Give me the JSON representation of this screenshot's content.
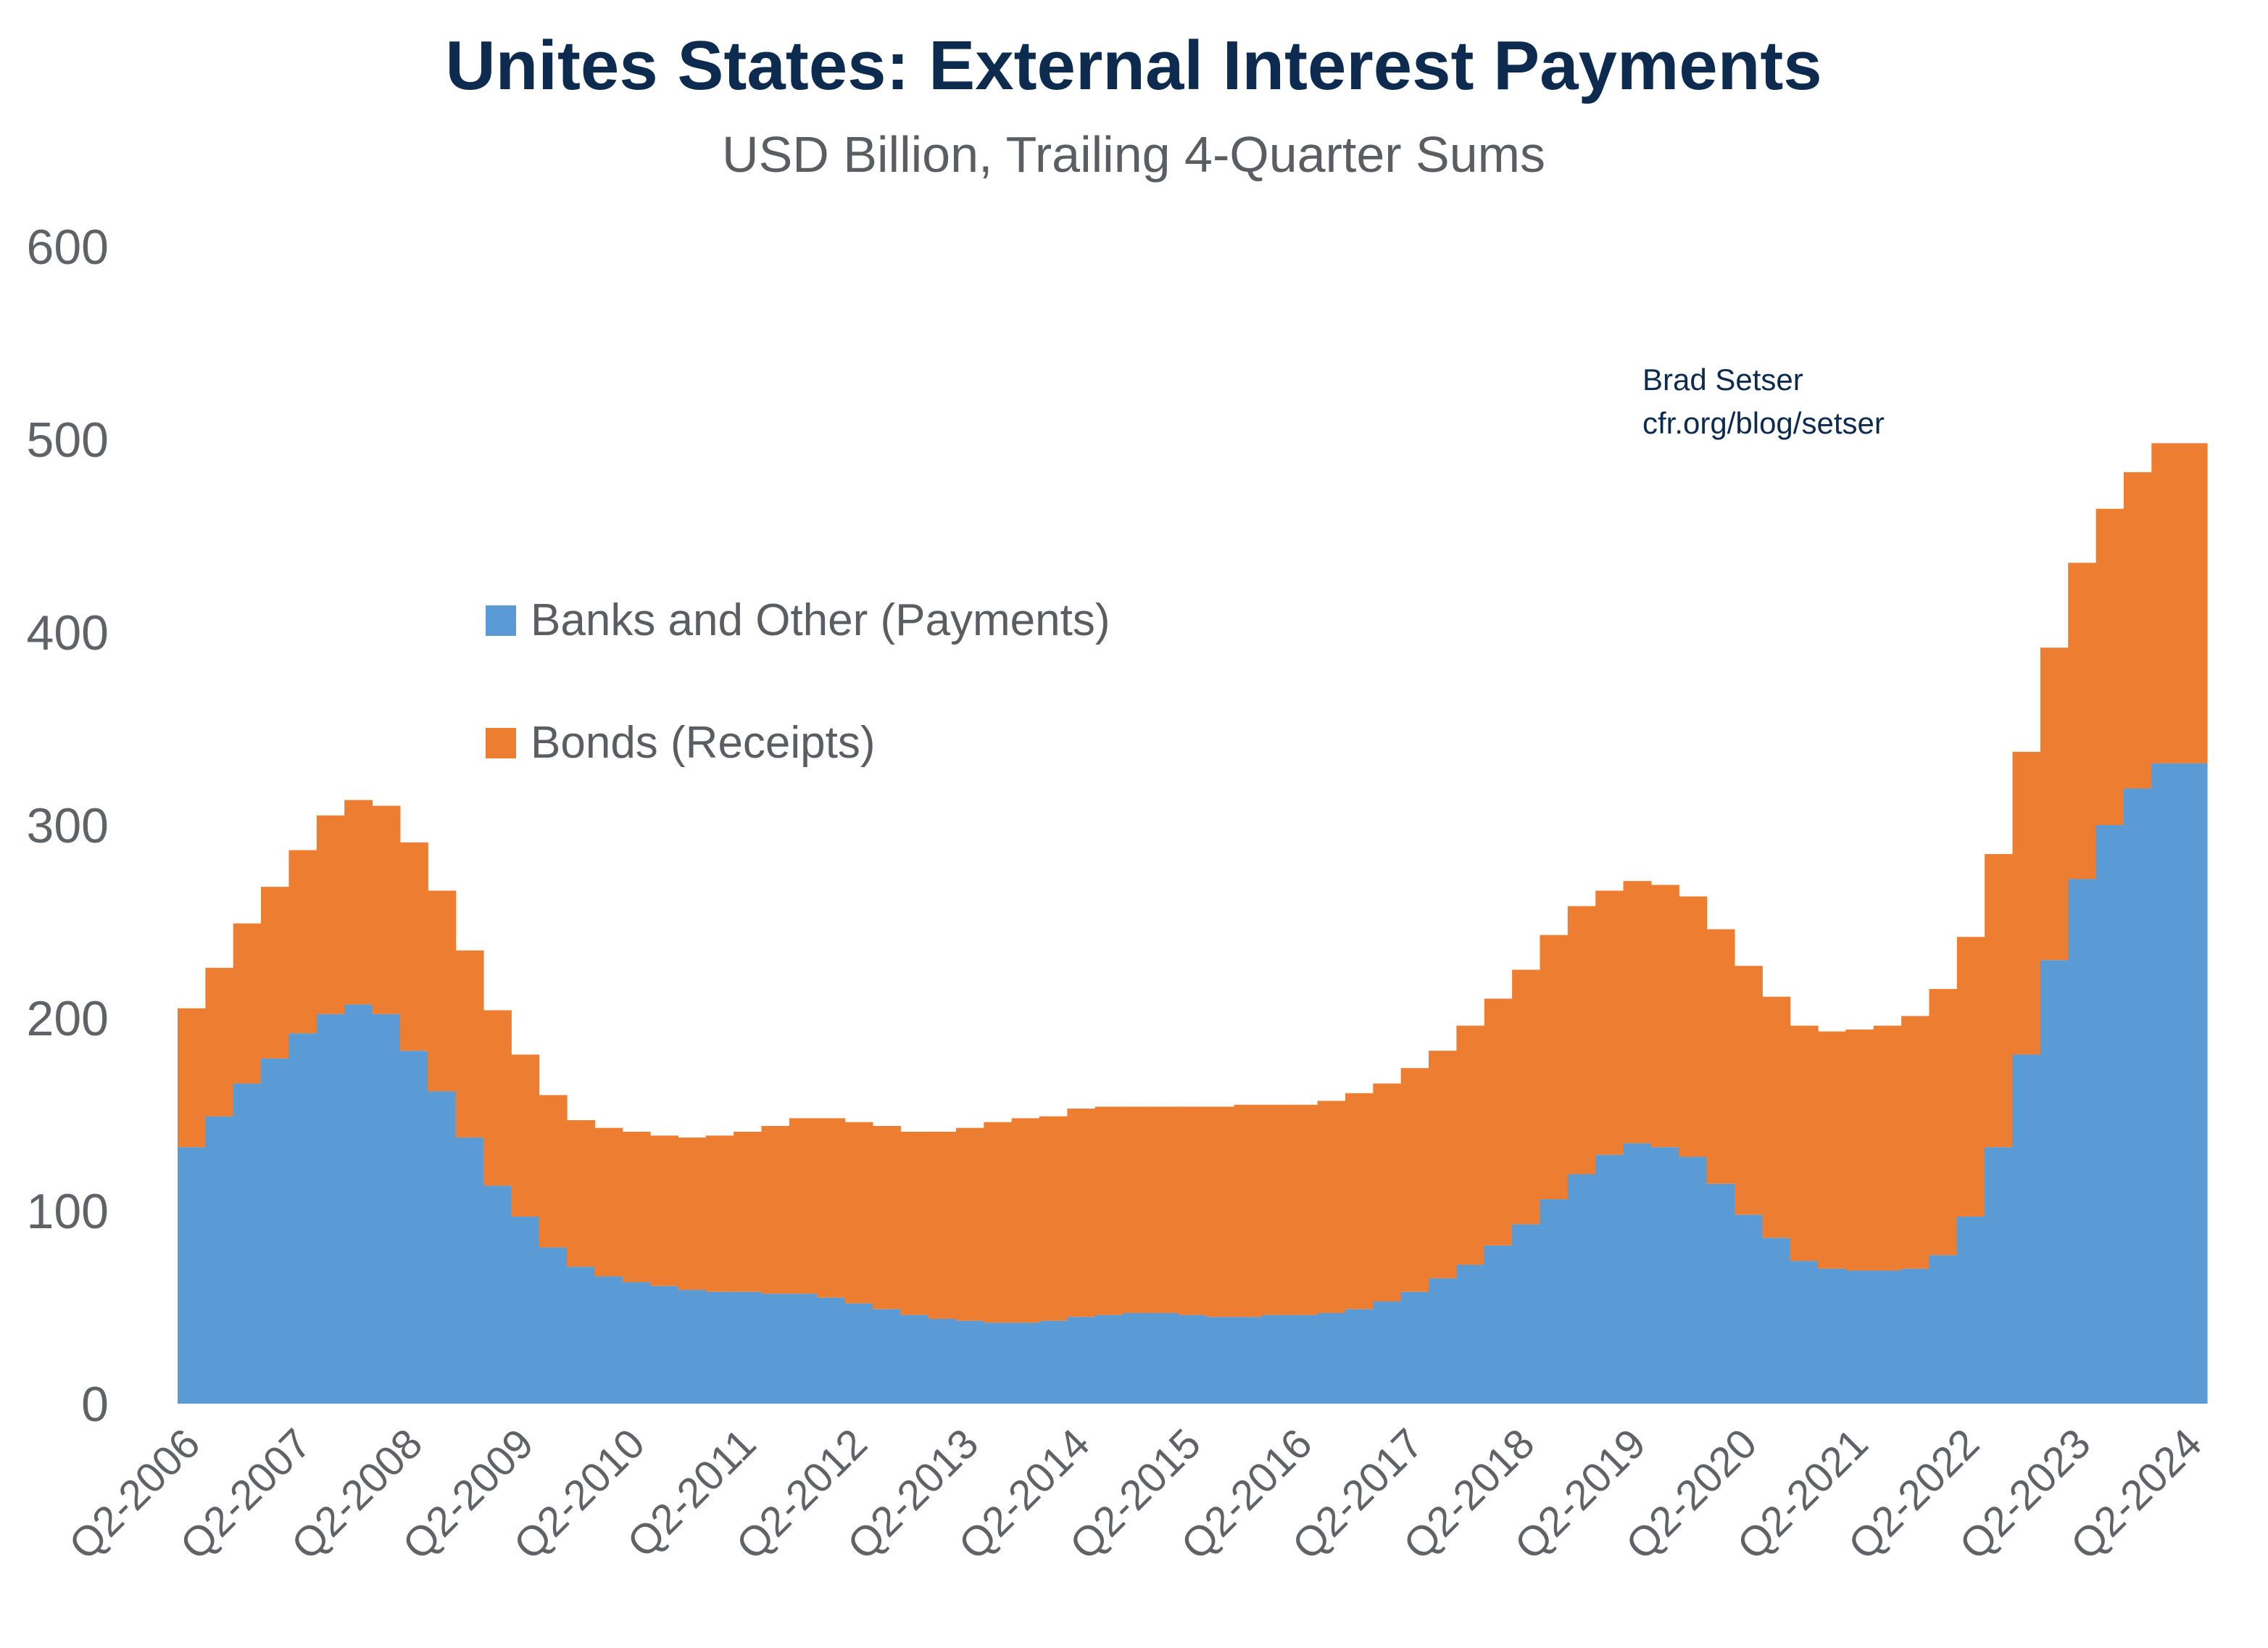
{
  "chart_data": {
    "type": "bar",
    "stacked": true,
    "title": "Unites States: External Interest Payments",
    "subtitle": "USD Billion, Trailing 4-Quarter Sums",
    "credit_line1": "Brad Setser",
    "credit_line2": "cfr.org/blog/setser",
    "ylim": [
      0,
      600
    ],
    "yticks": [
      0,
      100,
      200,
      300,
      400,
      500,
      600
    ],
    "grid": false,
    "legend_position": "center-left",
    "categories": [
      "Q2-2006",
      "Q3-2006",
      "Q4-2006",
      "Q1-2007",
      "Q2-2007",
      "Q3-2007",
      "Q4-2007",
      "Q1-2008",
      "Q2-2008",
      "Q3-2008",
      "Q4-2008",
      "Q1-2009",
      "Q2-2009",
      "Q3-2009",
      "Q4-2009",
      "Q1-2010",
      "Q2-2010",
      "Q3-2010",
      "Q4-2010",
      "Q1-2011",
      "Q2-2011",
      "Q3-2011",
      "Q4-2011",
      "Q1-2012",
      "Q2-2012",
      "Q3-2012",
      "Q4-2012",
      "Q1-2013",
      "Q2-2013",
      "Q3-2013",
      "Q4-2013",
      "Q1-2014",
      "Q2-2014",
      "Q3-2014",
      "Q4-2014",
      "Q1-2015",
      "Q2-2015",
      "Q3-2015",
      "Q4-2015",
      "Q1-2016",
      "Q2-2016",
      "Q3-2016",
      "Q4-2016",
      "Q1-2017",
      "Q2-2017",
      "Q3-2017",
      "Q4-2017",
      "Q1-2018",
      "Q2-2018",
      "Q3-2018",
      "Q4-2018",
      "Q1-2019",
      "Q2-2019",
      "Q3-2019",
      "Q4-2019",
      "Q1-2020",
      "Q2-2020",
      "Q3-2020",
      "Q4-2020",
      "Q1-2021",
      "Q2-2021",
      "Q3-2021",
      "Q4-2021",
      "Q1-2022",
      "Q2-2022",
      "Q3-2022",
      "Q4-2022",
      "Q1-2023",
      "Q2-2023",
      "Q3-2023",
      "Q4-2023",
      "Q1-2024",
      "Q2-2024"
    ],
    "labeled_ticks": [
      "Q2-2006",
      "Q2-2007",
      "Q2-2008",
      "Q2-2009",
      "Q2-2010",
      "Q2-2011",
      "Q2-2012",
      "Q2-2013",
      "Q2-2014",
      "Q2-2015",
      "Q2-2016",
      "Q2-2017",
      "Q2-2018",
      "Q2-2019",
      "Q2-2020",
      "Q2-2021",
      "Q2-2022",
      "Q2-2023",
      "Q2-2024"
    ],
    "series": [
      {
        "name": "Banks and Other (Payments)",
        "color": "#5b9bd5",
        "values": [
          133,
          149,
          166,
          179,
          192,
          202,
          207,
          202,
          183,
          162,
          138,
          113,
          97,
          81,
          71,
          66,
          63,
          61,
          59,
          58,
          58,
          57,
          57,
          55,
          52,
          49,
          46,
          44,
          43,
          42,
          42,
          43,
          45,
          46,
          47,
          47,
          46,
          45,
          45,
          46,
          46,
          47,
          49,
          53,
          58,
          65,
          72,
          82,
          93,
          106,
          119,
          129,
          135,
          133,
          128,
          114,
          98,
          86,
          74,
          70,
          69,
          69,
          70,
          77,
          97,
          133,
          181,
          230,
          272,
          300,
          319,
          332,
          332
        ]
      },
      {
        "name": "Bonds (Receipts)",
        "color": "#ed7d31",
        "values": [
          72,
          77,
          83,
          89,
          95,
          103,
          106,
          108,
          108,
          104,
          97,
          91,
          84,
          79,
          76,
          77,
          78,
          78,
          79,
          81,
          83,
          87,
          91,
          93,
          94,
          95,
          95,
          97,
          100,
          104,
          106,
          106,
          108,
          108,
          107,
          107,
          108,
          109,
          110,
          109,
          109,
          110,
          112,
          113,
          116,
          118,
          124,
          128,
          132,
          137,
          139,
          137,
          136,
          136,
          135,
          132,
          129,
          125,
          122,
          123,
          125,
          127,
          131,
          138,
          145,
          152,
          157,
          162,
          164,
          164,
          164,
          166,
          166
        ]
      }
    ]
  }
}
